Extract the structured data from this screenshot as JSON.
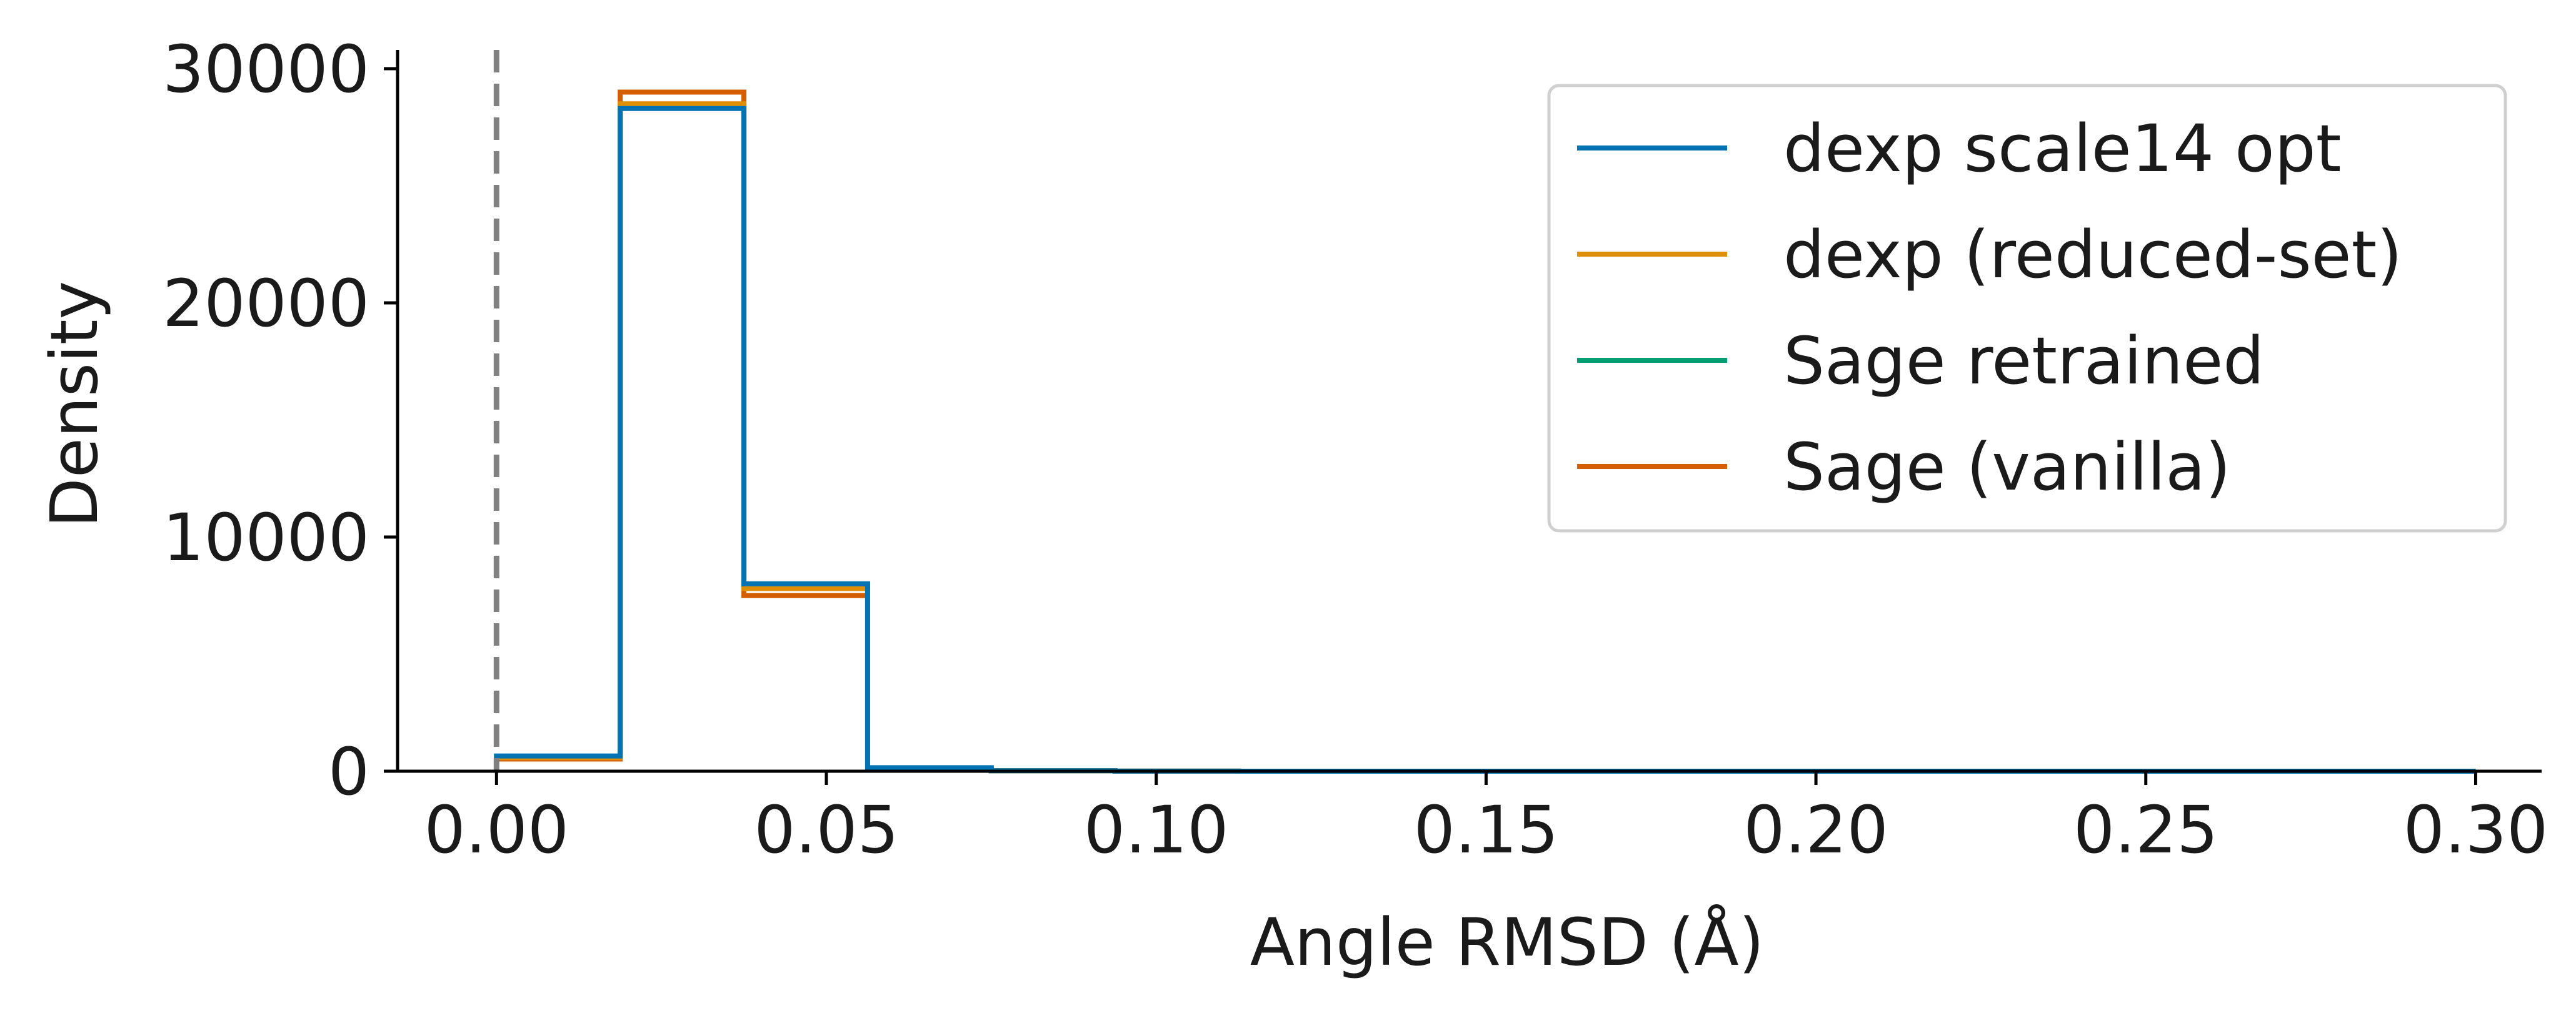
{
  "chart_data": {
    "type": "bar",
    "histogram": true,
    "xlabel": "Angle RMSD (Å)",
    "ylabel": "Density",
    "xlim": [
      -0.015,
      0.31
    ],
    "ylim": [
      0,
      30800
    ],
    "xticks": [
      0.0,
      0.05,
      0.1,
      0.15,
      0.2,
      0.25,
      0.3
    ],
    "xtick_labels": [
      "0.00",
      "0.05",
      "0.10",
      "0.15",
      "0.20",
      "0.25",
      "0.30"
    ],
    "yticks": [
      0,
      10000,
      20000,
      30000
    ],
    "ytick_labels": [
      "0",
      "10000",
      "20000",
      "30000"
    ],
    "bin_edges": [
      0.0,
      0.01875,
      0.0375,
      0.05625,
      0.075,
      0.09375,
      0.1125,
      0.13125,
      0.15,
      0.16875,
      0.1875,
      0.20625,
      0.225,
      0.24375,
      0.2625,
      0.28125,
      0.3
    ],
    "reference_line": {
      "x": 0.0,
      "style": "dashed",
      "color": "#808080"
    },
    "legend_position": "upper-right",
    "grid": false,
    "series": [
      {
        "name": "dexp scale14 opt",
        "color": "#0173b2",
        "values": [
          650,
          28300,
          8000,
          150,
          20,
          5,
          0,
          0,
          0,
          0,
          0,
          0,
          0,
          0,
          0,
          0
        ]
      },
      {
        "name": "dexp (reduced-set)",
        "color": "#de8f05",
        "values": [
          580,
          28500,
          7800,
          140,
          20,
          5,
          0,
          0,
          0,
          0,
          0,
          0,
          0,
          0,
          0,
          0
        ]
      },
      {
        "name": "Sage retrained",
        "color": "#029e73",
        "values": [
          600,
          28400,
          7900,
          145,
          20,
          5,
          0,
          0,
          0,
          0,
          0,
          0,
          0,
          0,
          0,
          0
        ]
      },
      {
        "name": "Sage (vanilla)",
        "color": "#d55e00",
        "values": [
          520,
          29000,
          7500,
          130,
          20,
          5,
          0,
          0,
          0,
          0,
          0,
          0,
          0,
          0,
          0,
          0
        ]
      }
    ]
  }
}
